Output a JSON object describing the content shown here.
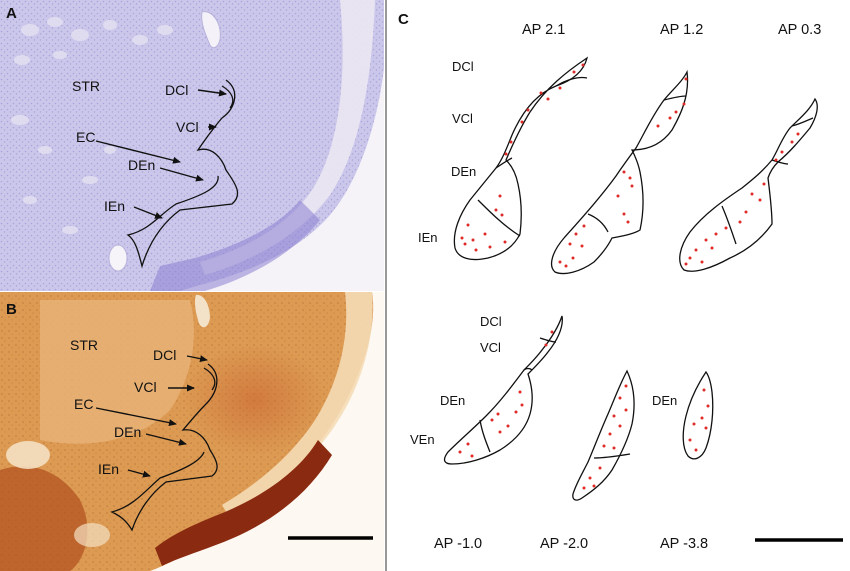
{
  "panels": {
    "a": {
      "letter": "A",
      "labels": {
        "str": "STR",
        "dcl": "DCl",
        "vcl": "VCl",
        "ec": "EC",
        "den": "DEn",
        "ien": "IEn"
      },
      "colors": {
        "tissue": "#c9c6ea",
        "tissue_dark": "#7e74c9",
        "wm": "#e9e4f0"
      }
    },
    "b": {
      "letter": "B",
      "labels": {
        "str": "STR",
        "dcl": "DCl",
        "vcl": "VCl",
        "ec": "EC",
        "den": "DEn",
        "ien": "IEn"
      },
      "colors": {
        "tissue": "#d9924a",
        "tissue_light": "#eab67a",
        "tissue_dark": "#8c2a0e",
        "wm": "#f3d9b4"
      }
    },
    "c": {
      "letter": "C",
      "sections_top": [
        {
          "ap": "AP 2.1",
          "labels": {
            "dcl": "DCl",
            "vcl": "VCl",
            "den": "DEn",
            "ien": "IEn"
          }
        },
        {
          "ap": "AP 1.2"
        },
        {
          "ap": "AP 0.3"
        }
      ],
      "sections_bottom": [
        {
          "ap": "AP -1.0",
          "labels": {
            "dcl": "DCl",
            "vcl": "VCl",
            "den": "DEn",
            "ven": "VEn"
          }
        },
        {
          "ap": "AP -2.0"
        },
        {
          "ap": "AP -3.8",
          "labels": {
            "den": "DEn"
          }
        }
      ],
      "dot_color": "#e02a2a"
    }
  }
}
